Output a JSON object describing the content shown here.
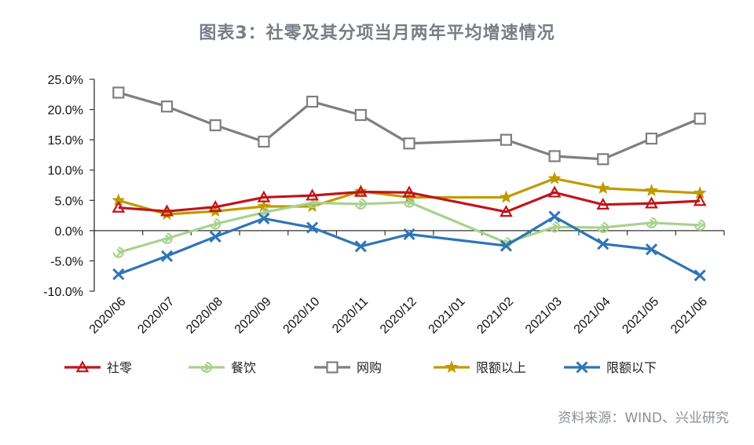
{
  "chart_data": {
    "type": "line",
    "title": "图表3：社零及其分项当月两年平均增速情况",
    "source": "资料来源：WIND、兴业研究",
    "categories": [
      "2020/06",
      "2020/07",
      "2020/08",
      "2020/09",
      "2020/10",
      "2020/11",
      "2020/12",
      "2021/01",
      "2021/02",
      "2021/03",
      "2021/04",
      "2021/05",
      "2021/06"
    ],
    "yticks": [
      "25.0%",
      "20.0%",
      "15.0%",
      "10.0%",
      "5.0%",
      "0.0%",
      "-5.0%",
      "-10.0%"
    ],
    "ylim": [
      -10,
      25
    ],
    "grid": false,
    "legend_position": "bottom",
    "series": [
      {
        "name": "社零",
        "color": "#c0141c",
        "marker": "triangle",
        "values": [
          3.8,
          3.2,
          3.9,
          5.5,
          5.8,
          6.4,
          6.3,
          null,
          3.1,
          6.3,
          4.3,
          4.5,
          4.9
        ]
      },
      {
        "name": "餐饮",
        "color": "#a9d18e",
        "marker": "arrow",
        "values": [
          -3.6,
          -1.3,
          1.1,
          3.0,
          4.6,
          4.4,
          4.7,
          null,
          -2.0,
          0.6,
          0.5,
          1.3,
          0.9
        ]
      },
      {
        "name": "网购",
        "color": "#7f7f7f",
        "marker": "square",
        "values": [
          22.8,
          20.5,
          17.4,
          14.7,
          21.3,
          19.1,
          14.4,
          null,
          15.0,
          12.3,
          11.8,
          15.2,
          18.5
        ]
      },
      {
        "name": "限额以上",
        "color": "#c09a00",
        "marker": "star",
        "values": [
          5.0,
          2.7,
          3.2,
          4.0,
          4.0,
          6.5,
          5.5,
          null,
          5.5,
          8.6,
          7.0,
          6.6,
          6.2
        ]
      },
      {
        "name": "限额以下",
        "color": "#2e75b6",
        "marker": "x",
        "values": [
          -7.2,
          -4.2,
          -1.0,
          2.0,
          0.5,
          -2.6,
          -0.6,
          null,
          -2.5,
          2.3,
          -2.2,
          -3.1,
          -7.4
        ]
      }
    ]
  }
}
